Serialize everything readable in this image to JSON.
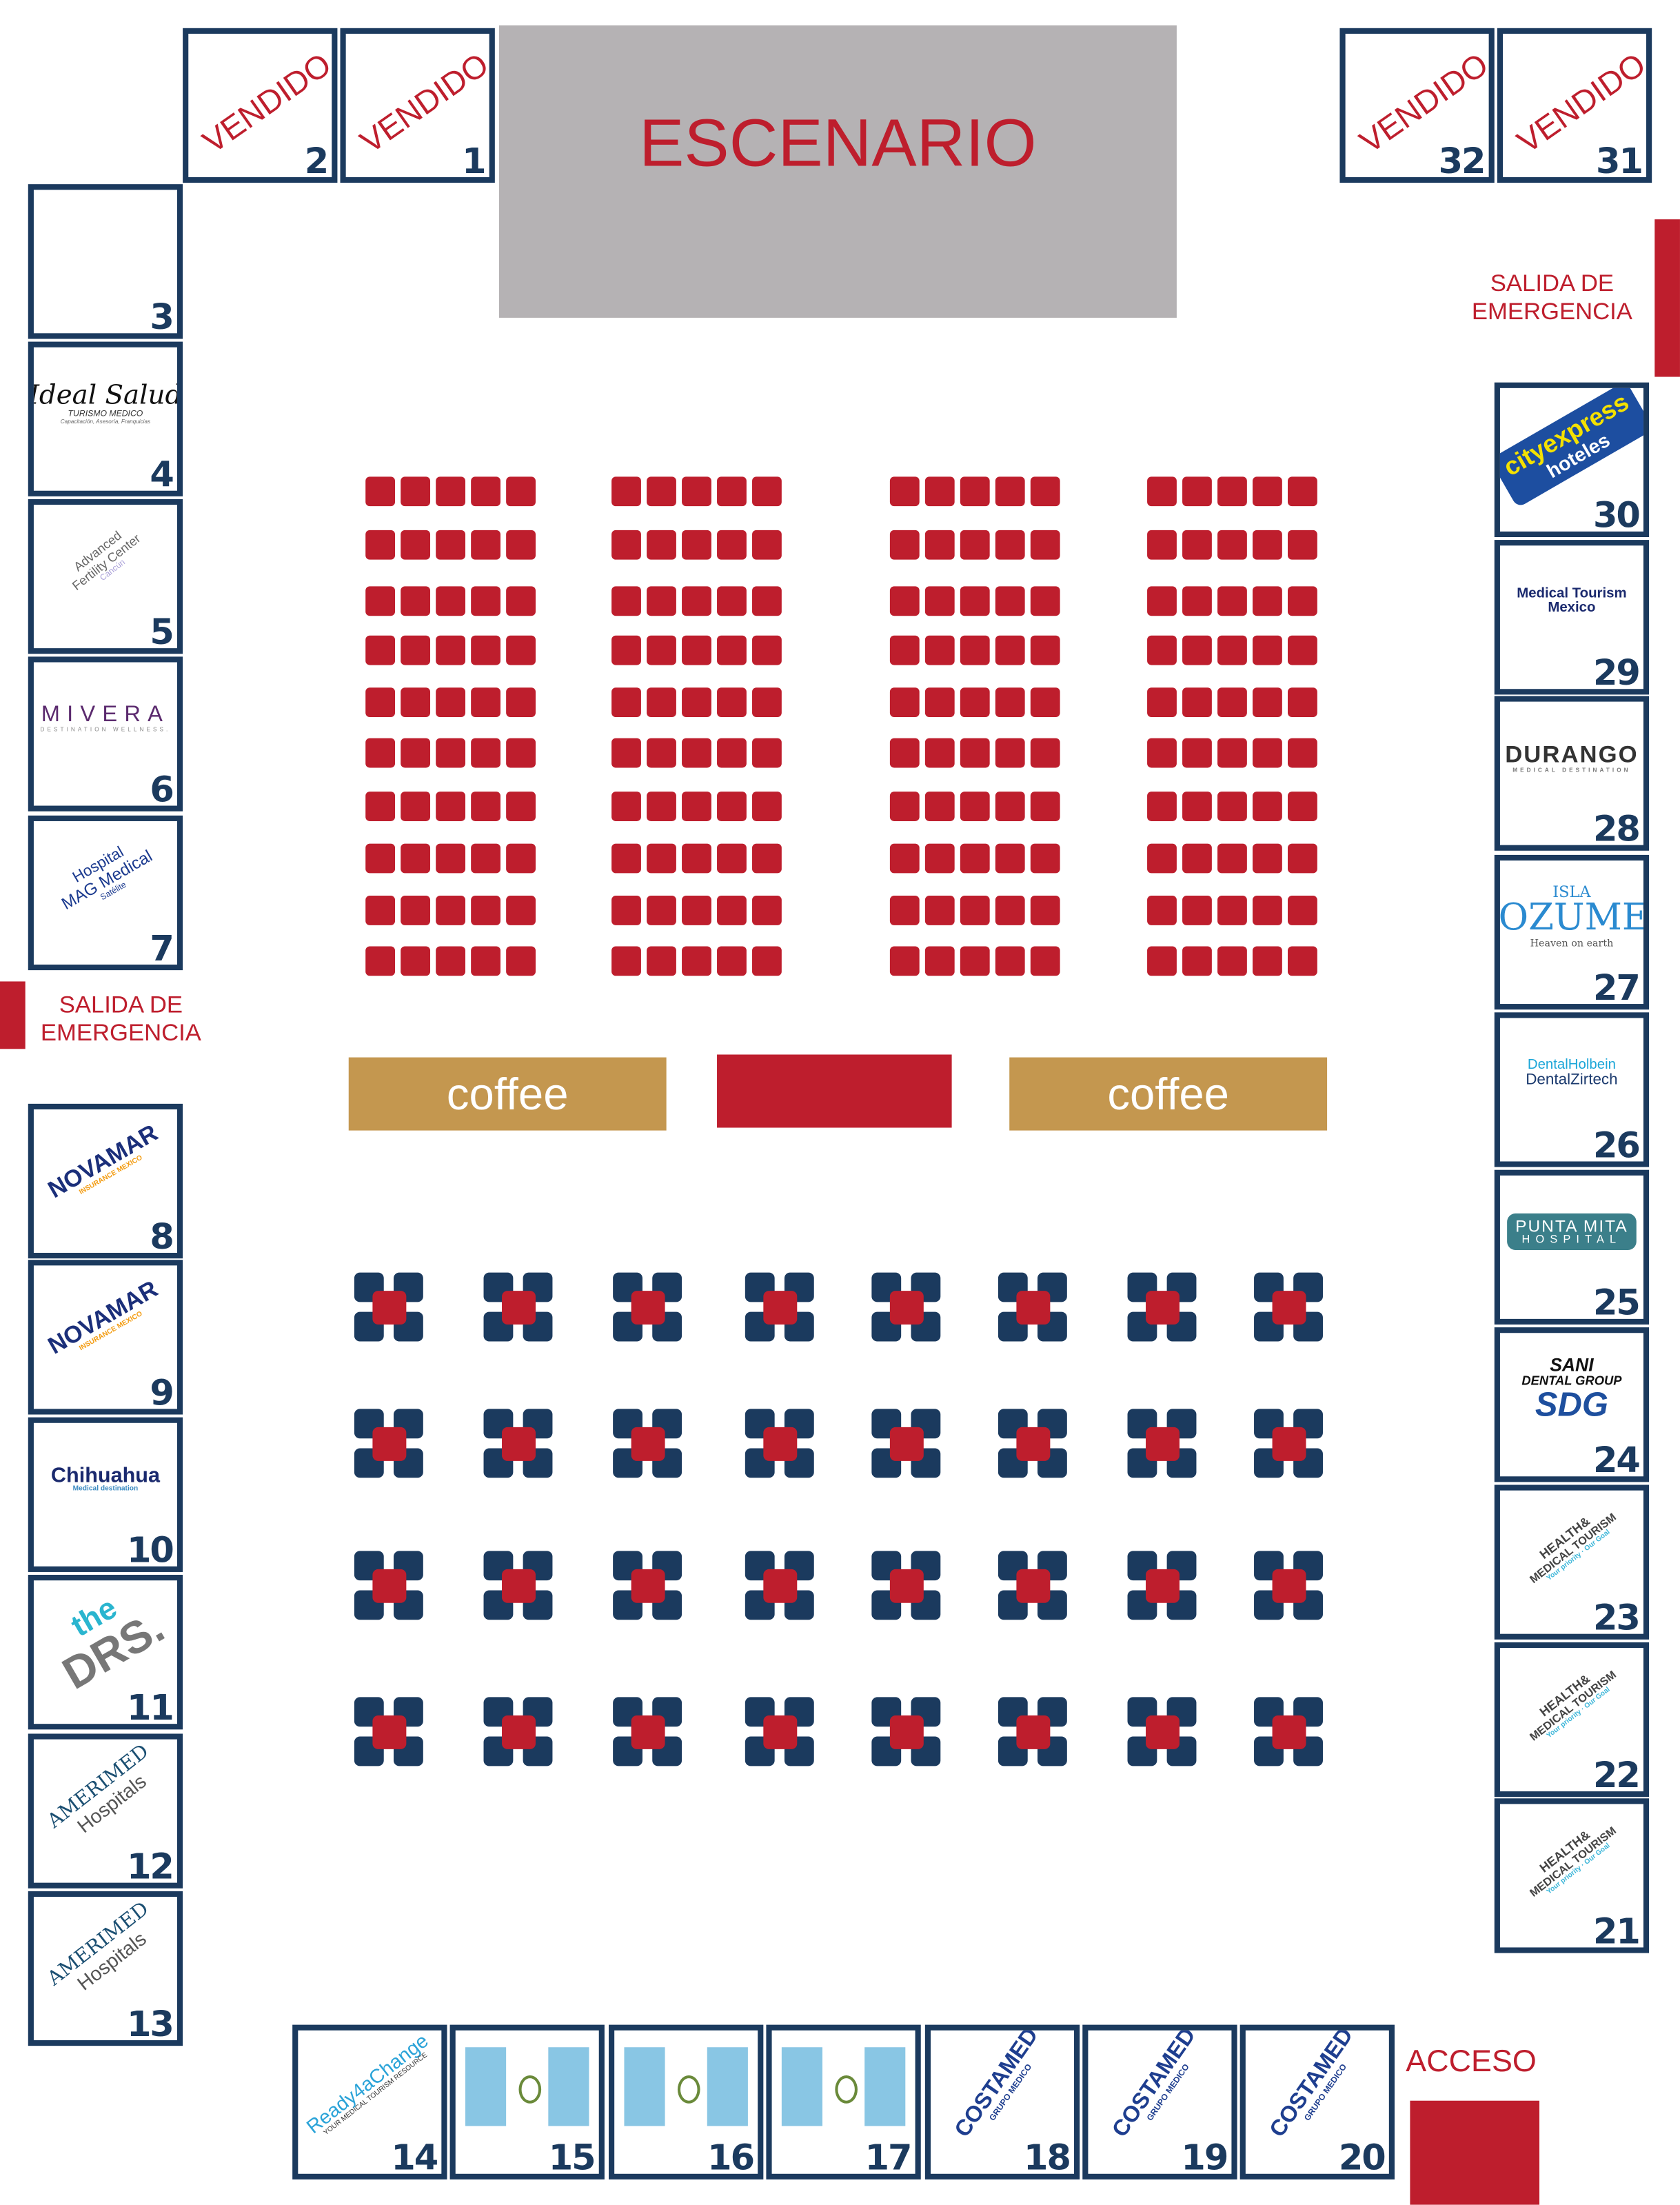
{
  "stage": {
    "label": "ESCENARIO",
    "color": "#b5b2b4"
  },
  "exits": [
    {
      "id": "right",
      "label_line1": "SALIDA DE",
      "label_line2": "EMERGENCIA"
    },
    {
      "id": "left",
      "label_line1": "SALIDA DE",
      "label_line2": "EMERGENCIA"
    }
  ],
  "access": {
    "label": "ACCESO"
  },
  "coffee": [
    {
      "label": "coffee"
    },
    {
      "label": "coffee"
    }
  ],
  "colors": {
    "navy": "#1b3a5e",
    "red": "#be1e2d",
    "gold": "#c4974f",
    "stage_gray": "#b5b2b4"
  },
  "seating": {
    "blocks": 4,
    "rows": 10,
    "seats_per_row": 5
  },
  "tables": {
    "rows": 4,
    "cols": 8
  },
  "booths": [
    {
      "number": "1",
      "status": "VENDIDO"
    },
    {
      "number": "2",
      "status": "VENDIDO"
    },
    {
      "number": "3"
    },
    {
      "number": "4",
      "logo": [
        "Ideal Salud",
        "TURISMO MEDICO",
        "Capacitación, Asesoría, Franquicias"
      ],
      "style": "idealsalud"
    },
    {
      "number": "5",
      "logo": [
        "Advanced",
        "Fertility Center",
        "Cancún"
      ],
      "style": "fertility"
    },
    {
      "number": "6",
      "logo": [
        "MIVERA",
        "DESTINATION WELLNESS."
      ],
      "style": "mivera"
    },
    {
      "number": "7",
      "logo": [
        "Hospital",
        "MAG Medical",
        "Satélite"
      ],
      "style": "mag"
    },
    {
      "number": "8",
      "logo": [
        "NOVAMAR",
        "INSURANCE MEXICO"
      ],
      "style": "novamar"
    },
    {
      "number": "9",
      "logo": [
        "NOVAMAR",
        "INSURANCE MEXICO"
      ],
      "style": "novamar"
    },
    {
      "number": "10",
      "logo": [
        "Chihuahua",
        "Medical destination"
      ],
      "style": "chihuahua"
    },
    {
      "number": "11",
      "logo": [
        "the",
        "DRS."
      ],
      "style": "drs"
    },
    {
      "number": "12",
      "logo": [
        "AMERIMED",
        "Hospitals"
      ],
      "style": "amerimed"
    },
    {
      "number": "13",
      "logo": [
        "AMERIMED",
        "Hospitals"
      ],
      "style": "amerimed"
    },
    {
      "number": "14",
      "logo": [
        "Ready4aChange",
        "YOUR MEDICAL TOURISM RESOURCE"
      ],
      "style": "ready"
    },
    {
      "number": "15",
      "style": "flag"
    },
    {
      "number": "16",
      "style": "flag"
    },
    {
      "number": "17",
      "style": "flag"
    },
    {
      "number": "18",
      "logo": [
        "COSTAMED",
        "GRUPO MEDICO"
      ],
      "style": "costamed"
    },
    {
      "number": "19",
      "logo": [
        "COSTAMED",
        "GRUPO MEDICO"
      ],
      "style": "costamed"
    },
    {
      "number": "20",
      "logo": [
        "COSTAMED",
        "GRUPO MEDICO"
      ],
      "style": "costamed"
    },
    {
      "number": "21",
      "logo": [
        "HEALTH&",
        "MEDICAL TOURISM",
        "Your priority · Our Goal"
      ],
      "style": "health"
    },
    {
      "number": "22",
      "logo": [
        "HEALTH&",
        "MEDICAL TOURISM",
        "Your priority · Our Goal"
      ],
      "style": "health"
    },
    {
      "number": "23",
      "logo": [
        "HEALTH&",
        "MEDICAL TOURISM",
        "Your priority · Our Goal"
      ],
      "style": "health"
    },
    {
      "number": "24",
      "logo": [
        "SANI",
        "DENTAL GROUP",
        "SDG"
      ],
      "style": "sani"
    },
    {
      "number": "25",
      "logo": [
        "PUNTA MITA",
        "HOSPITAL"
      ],
      "style": "puntamita"
    },
    {
      "number": "26",
      "logo": [
        "DentalHolbein",
        "DentalZirtech"
      ],
      "style": "dental"
    },
    {
      "number": "27",
      "logo": [
        "ISLA",
        "COZUMEL",
        "Heaven on earth"
      ],
      "style": "cozumel"
    },
    {
      "number": "28",
      "logo": [
        "DURANGO",
        "MEDICAL DESTINATION"
      ],
      "style": "durango"
    },
    {
      "number": "29",
      "logo": [
        "Medical Tourism",
        "Mexico"
      ],
      "style": "mtm"
    },
    {
      "number": "30",
      "logo": [
        "cityexpress",
        "hoteles"
      ],
      "style": "city"
    },
    {
      "number": "31",
      "status": "VENDIDO"
    },
    {
      "number": "32",
      "status": "VENDIDO"
    }
  ]
}
